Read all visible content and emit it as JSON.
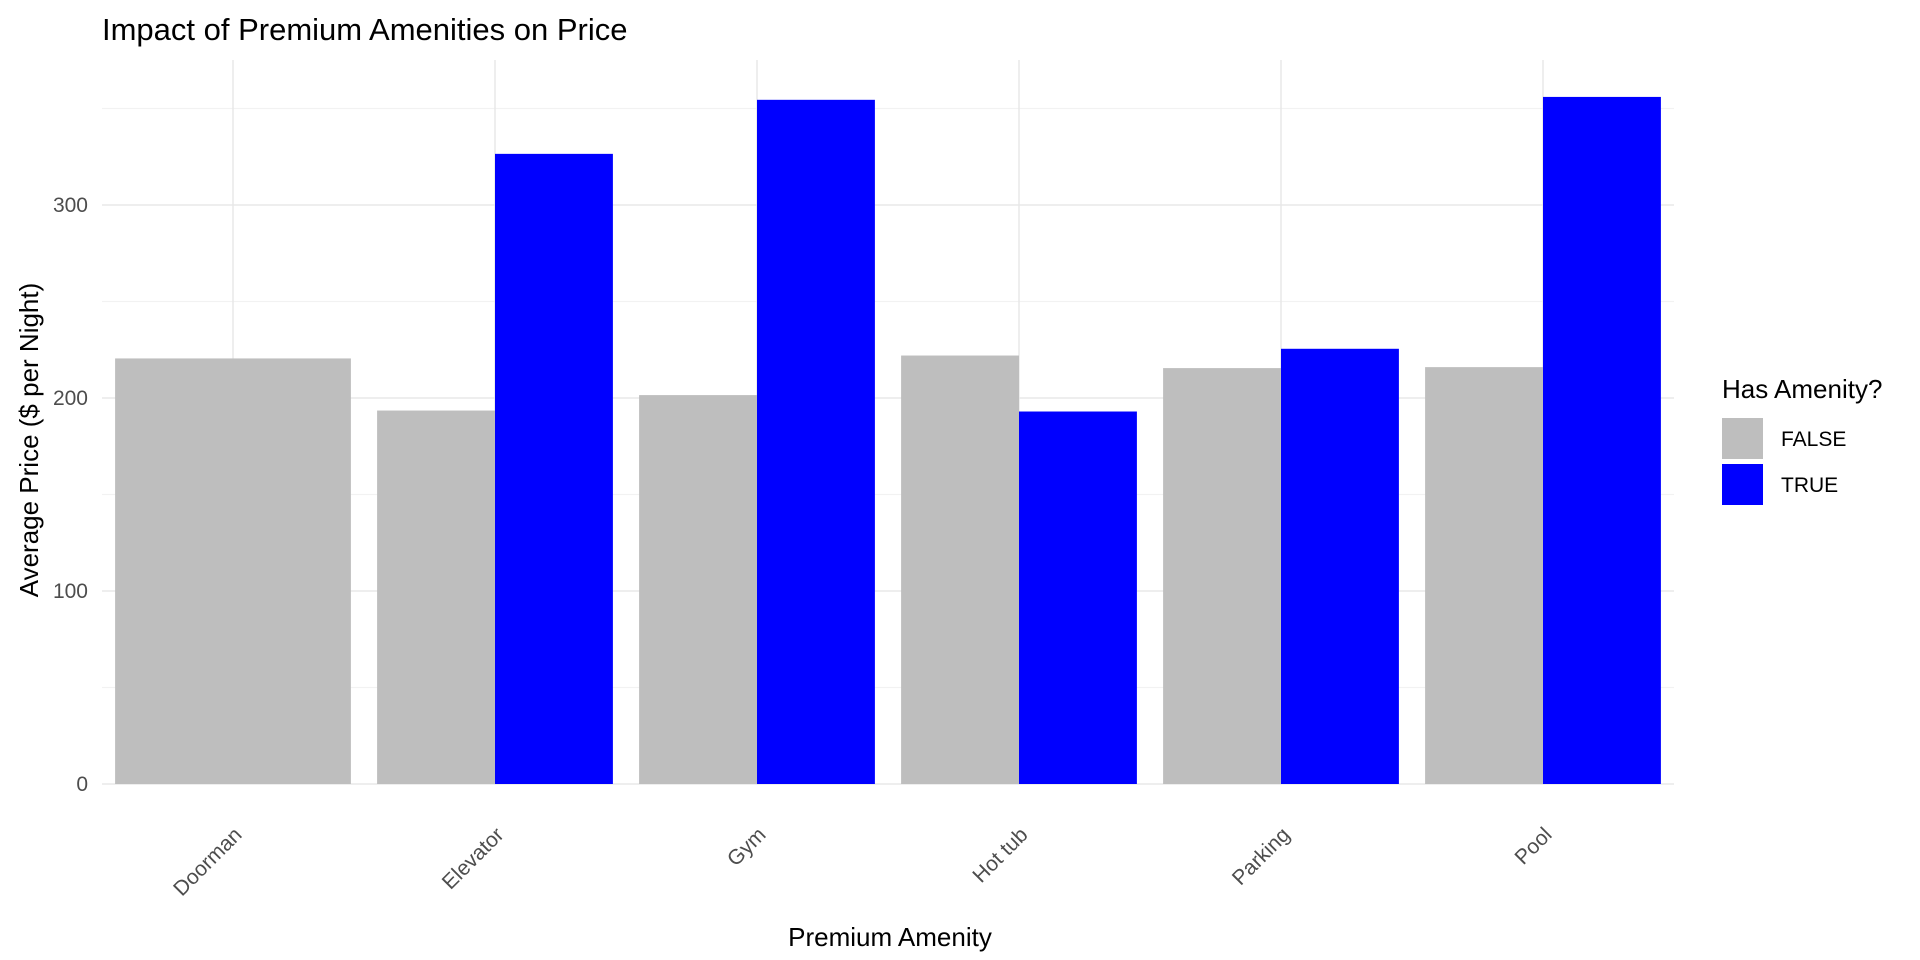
{
  "chart_data": {
    "type": "bar",
    "title": "Impact of Premium Amenities on Price",
    "xlabel": "Premium Amenity",
    "ylabel": "Average Price ($ per Night)",
    "categories": [
      "Doorman",
      "Elevator",
      "Gym",
      "Hot tub",
      "Parking",
      "Pool"
    ],
    "y_ticks": [
      "0",
      "100",
      "200",
      "300"
    ],
    "ylim": [
      0,
      375
    ],
    "grid": true,
    "legend": {
      "title": "Has Amenity?",
      "placement": "right"
    },
    "series": [
      {
        "name": "FALSE",
        "color": "#bebebe",
        "values": [
          220.5,
          193.5,
          201.5,
          222.0,
          215.5,
          216.0
        ]
      },
      {
        "name": "TRUE",
        "color": "#0000ff",
        "values": [
          null,
          326.5,
          354.5,
          null,
          225.5,
          356.0
        ]
      }
    ],
    "hot_tub_true_value": 193.0
  }
}
